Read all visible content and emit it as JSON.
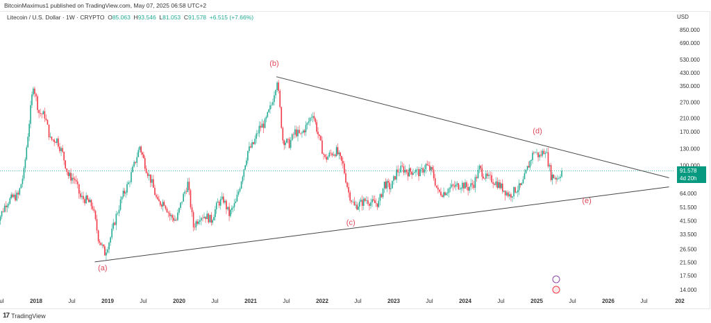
{
  "published": "BitcoinMaximus1 published on TradingView.com, May 07, 2025 06:58 UTC+2",
  "legend": {
    "symbol": "Litecoin / U.S. Dollar · 1W · CRYPTO",
    "o_label": "O",
    "o": "85.063",
    "h_label": "H",
    "h": "93.546",
    "l_label": "L",
    "l": "81.053",
    "c_label": "C",
    "c": "91.578",
    "change": "+6.515 (+7.66%)"
  },
  "currency": "USD",
  "last_price": {
    "value": "91.578",
    "countdown": "4d 20h"
  },
  "footer": {
    "brand": "TradingView"
  },
  "colors": {
    "up": "#22ab94",
    "down": "#f23645",
    "label": "#e0485a",
    "line": "#444444",
    "price_box": "#089981"
  },
  "chart_data": {
    "type": "candlestick",
    "scale": "log",
    "title": "Litecoin / U.S. Dollar · 1W · CRYPTO",
    "ylim": [
      14,
      850
    ],
    "xlim": [
      "2017-07",
      "2027-01"
    ],
    "y_ticks": [
      "850.000",
      "690.000",
      "530.000",
      "430.000",
      "350.000",
      "270.000",
      "210.000",
      "170.000",
      "130.000",
      "100.000",
      "64.000",
      "51.500",
      "41.500",
      "33.500",
      "26.500",
      "21.500",
      "17.500",
      "14.000"
    ],
    "x_ticks": [
      {
        "t": 2017.5,
        "label": "Jul"
      },
      {
        "t": 2018,
        "label": "2018"
      },
      {
        "t": 2018.5,
        "label": "Jul"
      },
      {
        "t": 2019,
        "label": "2019"
      },
      {
        "t": 2019.5,
        "label": "Jul"
      },
      {
        "t": 2020,
        "label": "2020"
      },
      {
        "t": 2020.5,
        "label": "Jul"
      },
      {
        "t": 2021,
        "label": "2021"
      },
      {
        "t": 2021.5,
        "label": "Jul"
      },
      {
        "t": 2022,
        "label": "2022"
      },
      {
        "t": 2022.5,
        "label": "Jul"
      },
      {
        "t": 2023,
        "label": "2023"
      },
      {
        "t": 2023.5,
        "label": "Jul"
      },
      {
        "t": 2024,
        "label": "2024"
      },
      {
        "t": 2024.5,
        "label": "Jul"
      },
      {
        "t": 2025,
        "label": "2025"
      },
      {
        "t": 2025.5,
        "label": "Jul"
      },
      {
        "t": 2026,
        "label": "2026"
      },
      {
        "t": 2026.5,
        "label": "Jul"
      },
      {
        "t": 2027,
        "label": "202"
      }
    ],
    "monthly_closes": [
      [
        2017.42,
        42
      ],
      [
        2017.5,
        45
      ],
      [
        2017.58,
        55
      ],
      [
        2017.67,
        60
      ],
      [
        2017.75,
        62
      ],
      [
        2017.83,
        90
      ],
      [
        2017.96,
        360
      ],
      [
        2018.04,
        230
      ],
      [
        2018.12,
        220
      ],
      [
        2018.2,
        150
      ],
      [
        2018.29,
        150
      ],
      [
        2018.37,
        120
      ],
      [
        2018.45,
        85
      ],
      [
        2018.54,
        80
      ],
      [
        2018.62,
        60
      ],
      [
        2018.7,
        58
      ],
      [
        2018.79,
        52
      ],
      [
        2018.87,
        32
      ],
      [
        2018.96,
        25
      ],
      [
        2019.04,
        32
      ],
      [
        2019.12,
        45
      ],
      [
        2019.2,
        60
      ],
      [
        2019.29,
        75
      ],
      [
        2019.37,
        100
      ],
      [
        2019.45,
        135
      ],
      [
        2019.54,
        95
      ],
      [
        2019.62,
        75
      ],
      [
        2019.7,
        55
      ],
      [
        2019.79,
        56
      ],
      [
        2019.87,
        45
      ],
      [
        2019.96,
        42
      ],
      [
        2020.04,
        58
      ],
      [
        2020.12,
        75
      ],
      [
        2020.2,
        38
      ],
      [
        2020.29,
        45
      ],
      [
        2020.37,
        45
      ],
      [
        2020.45,
        42
      ],
      [
        2020.54,
        55
      ],
      [
        2020.62,
        58
      ],
      [
        2020.7,
        46
      ],
      [
        2020.79,
        55
      ],
      [
        2020.87,
        80
      ],
      [
        2020.96,
        125
      ],
      [
        2021.04,
        140
      ],
      [
        2021.12,
        180
      ],
      [
        2021.2,
        195
      ],
      [
        2021.29,
        260
      ],
      [
        2021.37,
        390
      ],
      [
        2021.45,
        150
      ],
      [
        2021.54,
        140
      ],
      [
        2021.62,
        170
      ],
      [
        2021.7,
        160
      ],
      [
        2021.79,
        190
      ],
      [
        2021.87,
        230
      ],
      [
        2021.96,
        150
      ],
      [
        2022.04,
        110
      ],
      [
        2022.12,
        120
      ],
      [
        2022.2,
        125
      ],
      [
        2022.29,
        100
      ],
      [
        2022.37,
        65
      ],
      [
        2022.45,
        52
      ],
      [
        2022.54,
        55
      ],
      [
        2022.62,
        58
      ],
      [
        2022.7,
        55
      ],
      [
        2022.79,
        55
      ],
      [
        2022.87,
        75
      ],
      [
        2022.96,
        70
      ],
      [
        2023.04,
        90
      ],
      [
        2023.12,
        95
      ],
      [
        2023.2,
        90
      ],
      [
        2023.29,
        92
      ],
      [
        2023.37,
        88
      ],
      [
        2023.45,
        100
      ],
      [
        2023.54,
        90
      ],
      [
        2023.62,
        65
      ],
      [
        2023.7,
        65
      ],
      [
        2023.79,
        70
      ],
      [
        2023.87,
        72
      ],
      [
        2023.96,
        74
      ],
      [
        2024.04,
        70
      ],
      [
        2024.12,
        75
      ],
      [
        2024.2,
        95
      ],
      [
        2024.29,
        82
      ],
      [
        2024.37,
        80
      ],
      [
        2024.45,
        75
      ],
      [
        2024.54,
        68
      ],
      [
        2024.62,
        62
      ],
      [
        2024.7,
        68
      ],
      [
        2024.79,
        72
      ],
      [
        2024.87,
        95
      ],
      [
        2024.96,
        125
      ],
      [
        2025.04,
        115
      ],
      [
        2025.12,
        130
      ],
      [
        2025.2,
        85
      ],
      [
        2025.29,
        82
      ],
      [
        2025.35,
        91.578
      ]
    ],
    "last_price_line": 91.578,
    "trendlines": [
      {
        "name": "upper",
        "from": [
          2021.36,
          405
        ],
        "to": [
          2026.85,
          82
        ]
      },
      {
        "name": "lower",
        "from": [
          2018.82,
          21.7
        ],
        "to": [
          2026.85,
          71
        ]
      }
    ],
    "annotations": [
      {
        "label": "(a)",
        "t": 2018.93,
        "price": 19
      },
      {
        "label": "(b)",
        "t": 2021.33,
        "price": 480
      },
      {
        "label": "(c)",
        "t": 2022.4,
        "price": 39
      },
      {
        "label": "(d)",
        "t": 2025.01,
        "price": 165
      },
      {
        "label": "(e)",
        "t": 2025.7,
        "price": 55
      }
    ]
  }
}
